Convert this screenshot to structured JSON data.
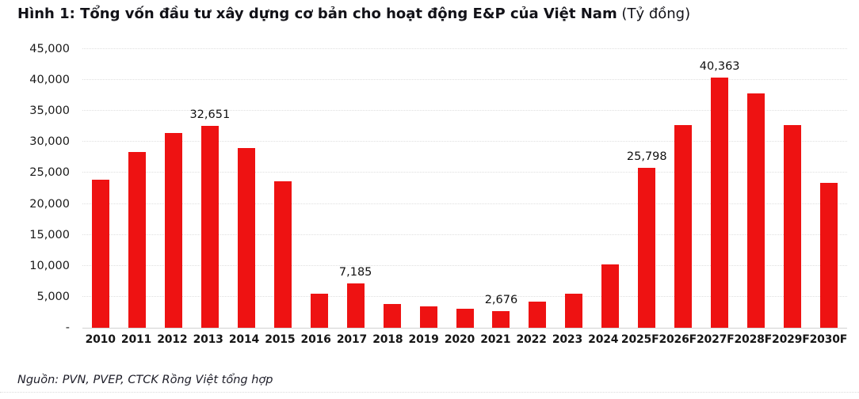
{
  "title": {
    "bold": "Hình 1: Tổng vốn đầu tư xây dựng cơ bản cho hoạt động E&P của Việt Nam",
    "suffix": " (Tỷ đồng)"
  },
  "source": "Nguồn: PVN, PVEP, CTCK Rồng Việt tổng hợp",
  "colors": {
    "bar": "#EE1212",
    "gridline": "#dfdfdf",
    "baseline": "#d2d2d2",
    "text": "#1a1a1a"
  },
  "chart_data": {
    "type": "bar",
    "title": "Tổng vốn đầu tư xây dựng cơ bản cho hoạt động E&P của Việt Nam (Tỷ đồng)",
    "categories": [
      "2010",
      "2011",
      "2012",
      "2013",
      "2014",
      "2015",
      "2016",
      "2017",
      "2018",
      "2019",
      "2020",
      "2021",
      "2022",
      "2023",
      "2024",
      "2025F",
      "2026F",
      "2027F",
      "2028F",
      "2029F",
      "2030F"
    ],
    "values": [
      23900,
      28400,
      31500,
      32651,
      29050,
      23650,
      5450,
      7185,
      3800,
      3450,
      3050,
      2676,
      4250,
      5500,
      10200,
      25798,
      32750,
      40363,
      37800,
      32700,
      23350
    ],
    "data_labels": [
      null,
      null,
      null,
      "32,651",
      null,
      null,
      null,
      "7,185",
      null,
      null,
      null,
      "2,676",
      null,
      null,
      null,
      "25,798",
      null,
      "40,363",
      null,
      null,
      null
    ],
    "ylim": [
      0,
      45000
    ],
    "ytick_step": 5000,
    "y_tick_labels": [
      "45,000",
      "40,000",
      "35,000",
      "30,000",
      "25,000",
      "20,000",
      "15,000",
      "10,000",
      "5,000",
      "-"
    ],
    "xlabel": "",
    "ylabel": "Tỷ đồng",
    "grid": "horizontal-dotted",
    "legend": "none"
  }
}
